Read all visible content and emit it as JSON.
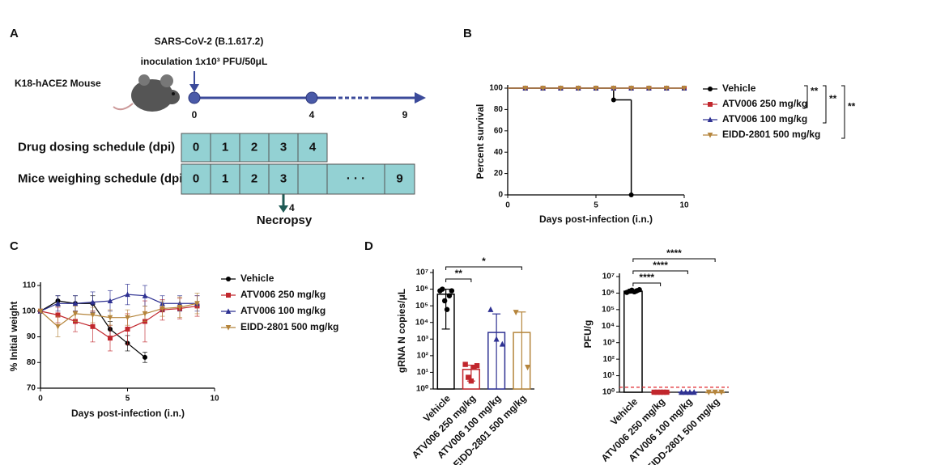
{
  "schematic": {
    "panel": "A",
    "virus": "SARS-CoV-2 (B.1.617.2)",
    "inoculation": "inoculation 1x10³ PFU/50μL",
    "mouse": "K18-hACE2 Mouse",
    "timeline": [
      "0",
      "4",
      "9"
    ],
    "rows": [
      {
        "label": "Drug dosing schedule (dpi)",
        "cells": [
          "0",
          "1",
          "2",
          "3",
          "4"
        ]
      },
      {
        "label": "Mice weighing schedule (dpi)",
        "cells": [
          "0",
          "1",
          "2",
          "3",
          null,
          "· · ·",
          "9"
        ]
      }
    ],
    "necropsy_day": "4",
    "necropsy": "Necropsy"
  },
  "chart_data": [
    {
      "type": "line",
      "panel": "B",
      "step": true,
      "ylabel": "Percent survival",
      "xlabel": "Days post-infection (i.n.)",
      "xlim": [
        0,
        10
      ],
      "xticks": [
        0,
        5,
        10
      ],
      "ylim": [
        0,
        100
      ],
      "yticks": [
        0,
        20,
        40,
        60,
        80,
        100
      ],
      "series": [
        {
          "name": "Vehicle",
          "color": "#000000",
          "marker": "circle",
          "x": [
            1,
            2,
            3,
            4,
            5,
            6,
            7
          ],
          "values": [
            100,
            100,
            100,
            100,
            100,
            89,
            0
          ]
        },
        {
          "name": "ATV006 250 mg/kg",
          "color": "#c1272d",
          "marker": "square",
          "x": [
            1,
            2,
            3,
            4,
            5,
            6,
            7,
            8,
            9,
            10
          ],
          "values": [
            100,
            100,
            100,
            100,
            100,
            100,
            100,
            100,
            100,
            100
          ]
        },
        {
          "name": "ATV006 100 mg/kg",
          "color": "#2e3192",
          "marker": "triangle",
          "x": [
            1,
            2,
            3,
            4,
            5,
            6,
            7,
            8,
            9,
            10
          ],
          "values": [
            100,
            100,
            100,
            100,
            100,
            100,
            100,
            100,
            100,
            100
          ]
        },
        {
          "name": "EIDD-2801 500 mg/kg",
          "color": "#b5853c",
          "marker": "triangle-down",
          "x": [
            1,
            2,
            3,
            4,
            5,
            6,
            7,
            8,
            9,
            10
          ],
          "values": [
            100,
            100,
            100,
            100,
            100,
            100,
            100,
            100,
            100,
            100
          ]
        }
      ],
      "annotations": [
        "**",
        "**",
        "**"
      ]
    },
    {
      "type": "line",
      "panel": "C",
      "ylabel": "% Initial weight",
      "xlabel": "Days post-infection (i.n.)",
      "xlim": [
        0,
        10
      ],
      "xticks": [
        0,
        5,
        10
      ],
      "ylim": [
        70,
        110
      ],
      "yticks": [
        70,
        80,
        90,
        100,
        110
      ],
      "series": [
        {
          "name": "Vehicle",
          "color": "#000000",
          "marker": "circle",
          "x": [
            0,
            1,
            2,
            3,
            4,
            5,
            6
          ],
          "values": [
            100,
            104,
            103,
            103,
            93,
            87.5,
            82
          ],
          "errors": [
            0,
            2,
            3,
            3,
            3,
            3,
            2
          ]
        },
        {
          "name": "ATV006 250 mg/kg",
          "color": "#c1272d",
          "marker": "square",
          "x": [
            0,
            1,
            2,
            3,
            4,
            5,
            6,
            7,
            8,
            9
          ],
          "values": [
            100,
            98.5,
            96,
            94,
            89.5,
            93,
            96,
            100.5,
            101,
            102
          ],
          "errors": [
            0,
            3,
            4,
            6,
            5,
            6,
            8,
            4,
            4,
            4
          ]
        },
        {
          "name": "ATV006 100 mg/kg",
          "color": "#2e3192",
          "marker": "triangle",
          "x": [
            0,
            1,
            2,
            3,
            4,
            5,
            6,
            7,
            8,
            9
          ],
          "values": [
            100,
            103,
            103,
            103.5,
            104,
            106.5,
            106,
            103,
            103,
            103
          ],
          "errors": [
            0,
            3,
            3,
            4,
            4,
            4,
            4,
            3,
            3,
            3
          ]
        },
        {
          "name": "EIDD-2801 500 mg/kg",
          "color": "#b5853c",
          "marker": "triangle-down",
          "x": [
            0,
            1,
            2,
            3,
            4,
            5,
            6,
            7,
            8,
            9
          ],
          "values": [
            100,
            94,
            99,
            98.5,
            97.5,
            97.5,
            99,
            101,
            101.5,
            103
          ],
          "errors": [
            0,
            4,
            3,
            3,
            3,
            3,
            3,
            3,
            4,
            4
          ]
        }
      ]
    },
    {
      "type": "bar",
      "panel": "D",
      "log_scale": true,
      "ylabel": "gRNA N copies/μL",
      "ylim": [
        1,
        10000000
      ],
      "yticks": [
        {
          "value": 1,
          "label": "10⁰"
        },
        {
          "value": 10,
          "label": "10¹"
        },
        {
          "value": 100,
          "label": "10²"
        },
        {
          "value": 1000,
          "label": "10³"
        },
        {
          "value": 10000,
          "label": "10⁴"
        },
        {
          "value": 100000,
          "label": "10⁵"
        },
        {
          "value": 1000000,
          "label": "10⁶"
        },
        {
          "value": 10000000,
          "label": "10⁷"
        }
      ],
      "categories": [
        "Vehicle",
        "ATV006 250 mg/kg",
        "ATV006 100 mg/kg",
        "EIDD-2801 500 mg/kg"
      ],
      "colors": [
        "#000000",
        "#c1272d",
        "#2e3192",
        "#b5853c"
      ],
      "markers": [
        "circle",
        "square",
        "triangle",
        "triangle-down"
      ],
      "values": [
        500000,
        15,
        2500,
        2500
      ],
      "errors": [
        496000,
        12,
        30000,
        40000
      ],
      "points": [
        [
          800000,
          1000000,
          200000,
          60000,
          400000,
          800000
        ],
        [
          30,
          5,
          3,
          20,
          25
        ],
        [
          60000,
          1000,
          500
        ],
        [
          40000,
          20
        ]
      ],
      "comparisons": [
        {
          "label": "**",
          "groups": [
            "Vehicle",
            "ATV006 250 mg/kg"
          ]
        },
        {
          "label": "*",
          "groups": [
            "Vehicle",
            "EIDD-2801 500 mg/kg"
          ]
        }
      ]
    },
    {
      "type": "bar",
      "log_scale": true,
      "ylabel": "PFU/g",
      "ylim": [
        1,
        10000000
      ],
      "yticks": [
        {
          "value": 1,
          "label": "10⁰"
        },
        {
          "value": 10,
          "label": "10¹"
        },
        {
          "value": 100,
          "label": "10²"
        },
        {
          "value": 1000,
          "label": "10³"
        },
        {
          "value": 10000,
          "label": "10⁴"
        },
        {
          "value": 100000,
          "label": "10⁵"
        },
        {
          "value": 1000000,
          "label": "10⁶"
        },
        {
          "value": 10000000,
          "label": "10⁷"
        }
      ],
      "categories": [
        "Vehicle",
        "ATV006 250 mg/kg",
        "ATV006 100 mg/kg",
        "EIDD-2801 500 mg/kg"
      ],
      "colors": [
        "#000000",
        "#c1272d",
        "#2e3192",
        "#b5853c"
      ],
      "markers": [
        "circle",
        "square",
        "triangle",
        "triangle-down"
      ],
      "values": [
        1300000,
        1,
        1,
        1
      ],
      "errors": [
        300000,
        0,
        0,
        0
      ],
      "points": [
        [
          1100000,
          1300000,
          1500000,
          1200000,
          1400000,
          1600000
        ],
        [
          1,
          1,
          1,
          1,
          1
        ],
        [
          1,
          1,
          1,
          1
        ],
        [
          1,
          1,
          1
        ]
      ],
      "lod": 2,
      "lod_color": "#e0262b",
      "comparisons": [
        {
          "label": "****",
          "groups": [
            "Vehicle",
            "ATV006 250 mg/kg"
          ]
        },
        {
          "label": "****",
          "groups": [
            "Vehicle",
            "ATV006 100 mg/kg"
          ]
        },
        {
          "label": "****",
          "groups": [
            "Vehicle",
            "EIDD-2801 500 mg/kg"
          ]
        }
      ]
    }
  ]
}
